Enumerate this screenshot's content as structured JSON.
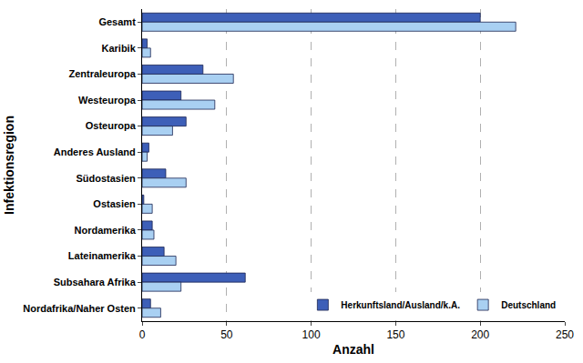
{
  "chart_data": {
    "type": "bar",
    "orientation": "horizontal",
    "x_label": "Anzahl",
    "y_label": "Infektionsregion",
    "categories": [
      "Gesamt",
      "Karibik",
      "Zentraleuropa",
      "Westeuropa",
      "Osteuropa",
      "Anderes Ausland",
      "Südostasien",
      "Ostasien",
      "Nordamerika",
      "Lateinamerika",
      "Subsahara Afrika",
      "Nordafrika/Naher Osten"
    ],
    "series": [
      {
        "name": "Herkunftsland/Ausland/k.A.",
        "color": "#3d5fb8",
        "values": [
          200,
          3,
          36,
          23,
          26,
          4,
          14,
          1,
          6,
          13,
          61,
          5
        ]
      },
      {
        "name": "Deutschland",
        "color": "#a9d0f2",
        "values": [
          221,
          5,
          54,
          43,
          18,
          3,
          26,
          6,
          7,
          20,
          23,
          11
        ]
      }
    ],
    "xlim": [
      0,
      250
    ],
    "xticks": [
      0,
      50,
      100,
      150,
      200,
      250
    ],
    "grid": true,
    "legend": "lower right"
  }
}
